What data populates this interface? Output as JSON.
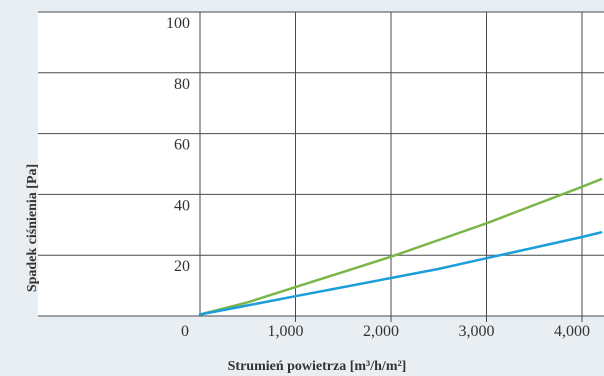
{
  "chart_data": {
    "type": "line",
    "title": "",
    "xlabel": "Strumień powietrza [m³/h/m²]",
    "ylabel": "Spadek ciśnienia  [Pa]",
    "xlim": [
      0,
      4200
    ],
    "ylim": [
      0,
      100
    ],
    "x_ticks": [
      {
        "value": 1000,
        "label": "1,000"
      },
      {
        "value": 2000,
        "label": "2,000"
      },
      {
        "value": 3000,
        "label": "3,000"
      },
      {
        "value": 4000,
        "label": "4,000"
      }
    ],
    "y_ticks": [
      {
        "value": 20,
        "label": "20"
      },
      {
        "value": 40,
        "label": "40"
      },
      {
        "value": 60,
        "label": "60"
      },
      {
        "value": 80,
        "label": "80"
      },
      {
        "value": 100,
        "label": "100"
      }
    ],
    "origin_label": "0",
    "grid": true,
    "series": [
      {
        "color": "#7ab648",
        "x": [
          0,
          500,
          1000,
          1500,
          2000,
          2500,
          3000,
          3500,
          4000,
          4200
        ],
        "y": [
          0.5,
          4.5,
          9.5,
          14.5,
          19.5,
          25,
          30.5,
          36.5,
          42.5,
          45
        ]
      },
      {
        "color": "#1b9ed9",
        "x": [
          0,
          500,
          1000,
          1500,
          2000,
          2500,
          3000,
          3500,
          4000,
          4200
        ],
        "y": [
          0.5,
          3.5,
          6.5,
          9.5,
          12.5,
          15.5,
          19,
          22.5,
          26,
          27.5
        ]
      }
    ]
  }
}
